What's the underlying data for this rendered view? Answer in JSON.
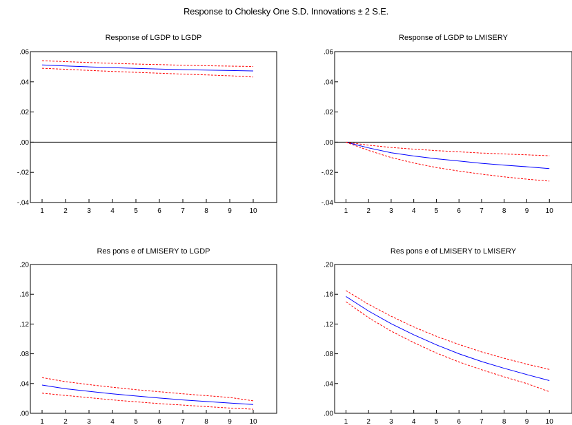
{
  "figure": {
    "title": "Response to Cholesky One S.D. Innovations ± 2 S.E."
  },
  "chart_data": [
    {
      "type": "line",
      "title": "Response of LGDP to LGDP",
      "x": [
        1,
        2,
        3,
        4,
        5,
        6,
        7,
        8,
        9,
        10
      ],
      "ylim": [
        -0.04,
        0.06
      ],
      "yticks": [
        -0.04,
        -0.02,
        0.0,
        0.02,
        0.04,
        0.06
      ],
      "ytick_labels": [
        "-.04",
        "-.02",
        ".00",
        ".02",
        ".04",
        ".06"
      ],
      "zero_line": true,
      "series": [
        {
          "role": "response",
          "color": "#0000ff",
          "style": "solid",
          "values": [
            0.0512,
            0.0505,
            0.0499,
            0.0494,
            0.0489,
            0.0485,
            0.0481,
            0.0478,
            0.0475,
            0.0472
          ]
        },
        {
          "role": "upper",
          "color": "#ff0000",
          "style": "dashed",
          "values": [
            0.054,
            0.0534,
            0.0528,
            0.0523,
            0.0518,
            0.0514,
            0.051,
            0.0507,
            0.0504,
            0.0502
          ]
        },
        {
          "role": "lower",
          "color": "#ff0000",
          "style": "dashed",
          "values": [
            0.049,
            0.0483,
            0.0476,
            0.0469,
            0.0463,
            0.0457,
            0.0451,
            0.0446,
            0.044,
            0.0432
          ]
        }
      ]
    },
    {
      "type": "line",
      "title": "Response of LGDP to LMISERY",
      "x": [
        1,
        2,
        3,
        4,
        5,
        6,
        7,
        8,
        9,
        10
      ],
      "ylim": [
        -0.04,
        0.06
      ],
      "yticks": [
        -0.04,
        -0.02,
        0.0,
        0.02,
        0.04,
        0.06
      ],
      "ytick_labels": [
        "-.04",
        "-.02",
        ".00",
        ".02",
        ".04",
        ".06"
      ],
      "zero_line": true,
      "series": [
        {
          "role": "response",
          "color": "#0000ff",
          "style": "solid",
          "values": [
            0.0,
            -0.0038,
            -0.007,
            -0.0092,
            -0.011,
            -0.0125,
            -0.014,
            -0.0152,
            -0.0163,
            -0.0175
          ]
        },
        {
          "role": "upper",
          "color": "#ff0000",
          "style": "dashed",
          "values": [
            0.0,
            -0.002,
            -0.0035,
            -0.0046,
            -0.0056,
            -0.0064,
            -0.0072,
            -0.0078,
            -0.0084,
            -0.009
          ]
        },
        {
          "role": "lower",
          "color": "#ff0000",
          "style": "dashed",
          "values": [
            0.0,
            -0.0055,
            -0.0102,
            -0.0138,
            -0.0168,
            -0.0192,
            -0.0212,
            -0.023,
            -0.0245,
            -0.0258
          ]
        }
      ]
    },
    {
      "type": "line",
      "title": "Res pons e of LMISERY to LGDP",
      "x": [
        1,
        2,
        3,
        4,
        5,
        6,
        7,
        8,
        9,
        10
      ],
      "ylim": [
        0.0,
        0.2
      ],
      "yticks": [
        0.0,
        0.04,
        0.08,
        0.12,
        0.16,
        0.2
      ],
      "ytick_labels": [
        ".00",
        ".04",
        ".08",
        ".12",
        ".16",
        ".20"
      ],
      "zero_line": false,
      "series": [
        {
          "role": "response",
          "color": "#0000ff",
          "style": "solid",
          "values": [
            0.038,
            0.033,
            0.0295,
            0.0262,
            0.0232,
            0.0205,
            0.018,
            0.0158,
            0.0138,
            0.0118
          ]
        },
        {
          "role": "upper",
          "color": "#ff0000",
          "style": "dashed",
          "values": [
            0.048,
            0.0425,
            0.0385,
            0.035,
            0.0318,
            0.029,
            0.0262,
            0.0237,
            0.0213,
            0.0168
          ]
        },
        {
          "role": "lower",
          "color": "#ff0000",
          "style": "dashed",
          "values": [
            0.027,
            0.024,
            0.021,
            0.018,
            0.0155,
            0.013,
            0.011,
            0.009,
            0.007,
            0.0055
          ]
        }
      ]
    },
    {
      "type": "line",
      "title": "Res pons e of LMISERY to LMISERY",
      "x": [
        1,
        2,
        3,
        4,
        5,
        6,
        7,
        8,
        9,
        10
      ],
      "ylim": [
        0.0,
        0.2
      ],
      "yticks": [
        0.0,
        0.04,
        0.08,
        0.12,
        0.16,
        0.2
      ],
      "ytick_labels": [
        ".00",
        ".04",
        ".08",
        ".12",
        ".16",
        ".20"
      ],
      "zero_line": false,
      "series": [
        {
          "role": "response",
          "color": "#0000ff",
          "style": "solid",
          "values": [
            0.157,
            0.1375,
            0.1205,
            0.1055,
            0.092,
            0.08,
            0.0695,
            0.0605,
            0.052,
            0.044
          ]
        },
        {
          "role": "upper",
          "color": "#ff0000",
          "style": "dashed",
          "values": [
            0.165,
            0.1465,
            0.1305,
            0.116,
            0.1035,
            0.0925,
            0.0825,
            0.074,
            0.066,
            0.059
          ]
        },
        {
          "role": "lower",
          "color": "#ff0000",
          "style": "dashed",
          "values": [
            0.15,
            0.1285,
            0.1105,
            0.095,
            0.081,
            0.069,
            0.0585,
            0.049,
            0.04,
            0.029
          ]
        }
      ]
    }
  ]
}
